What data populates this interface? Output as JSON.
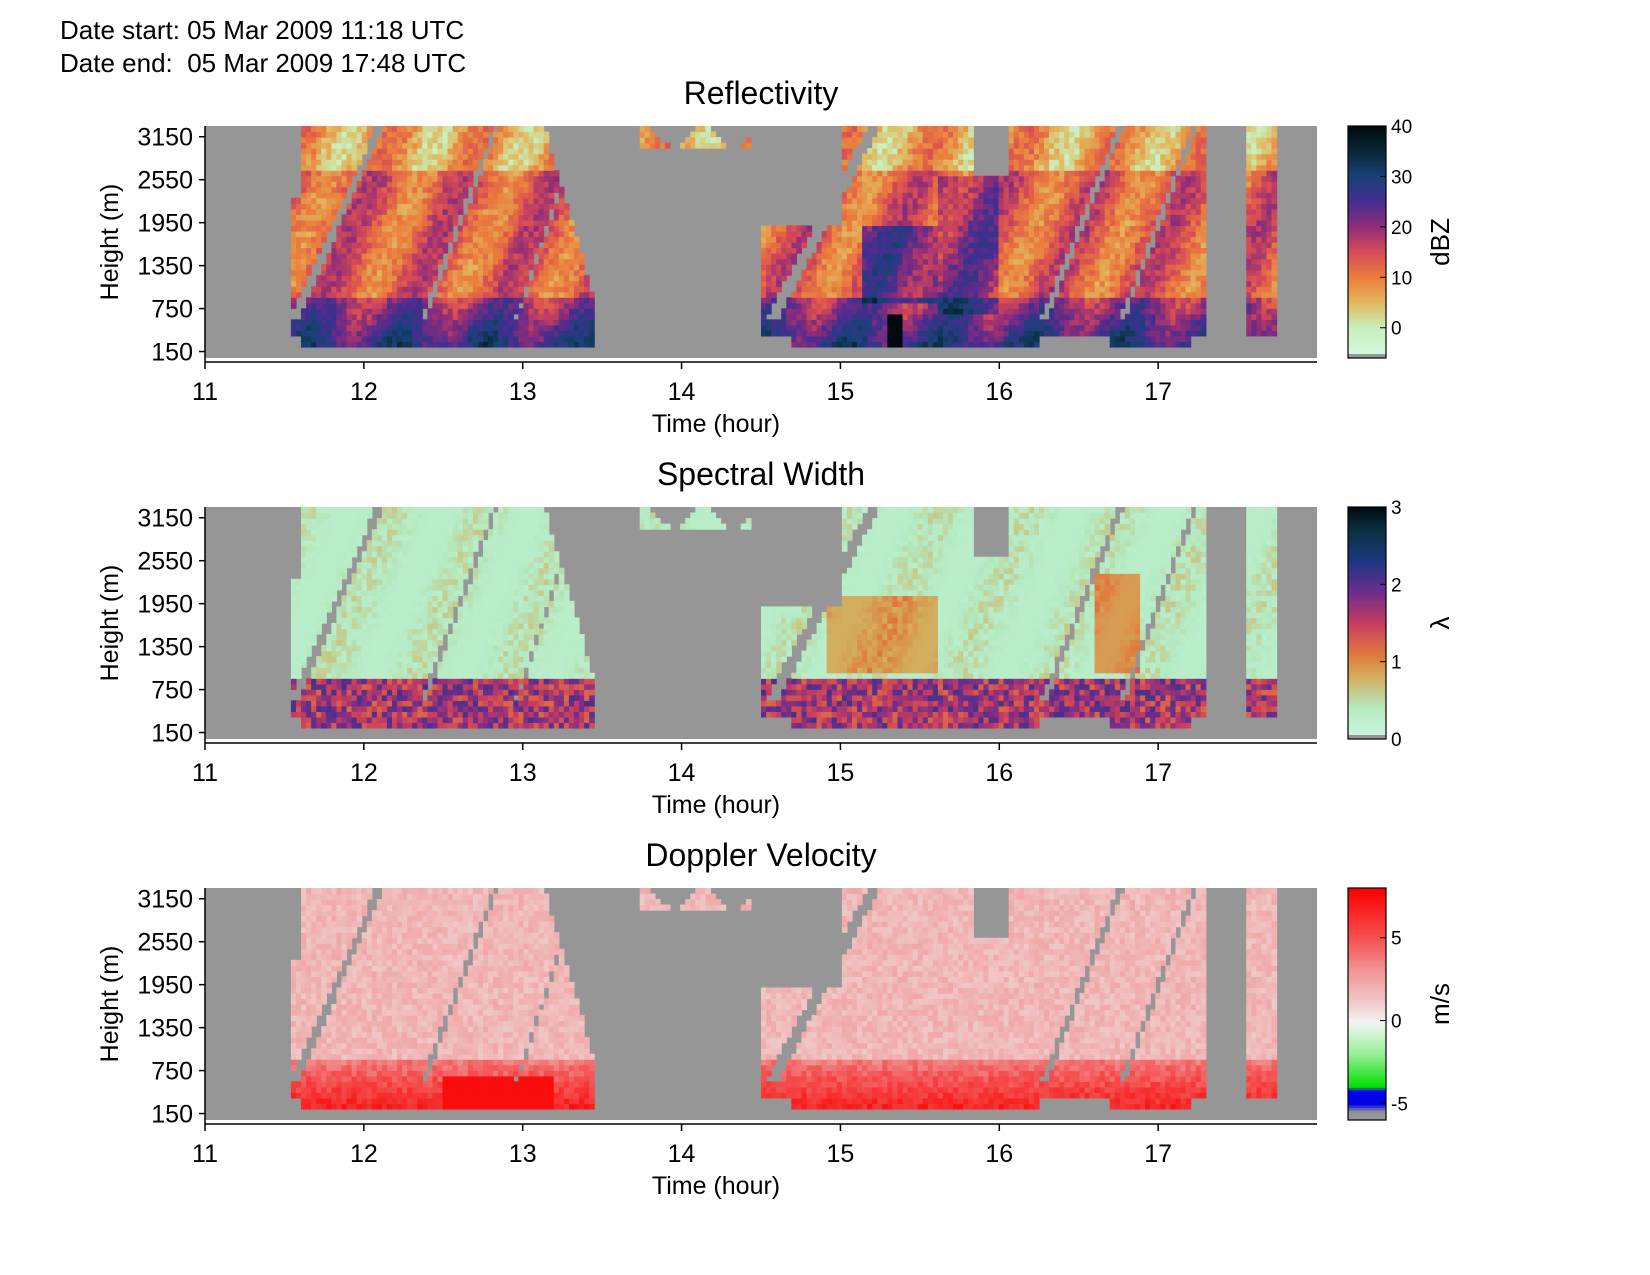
{
  "header": {
    "date_start": "Date start: 05 Mar 2009 11:18 UTC",
    "date_end": "Date end:  05 Mar 2009 17:48 UTC"
  },
  "chart_data": [
    {
      "type": "heatmap",
      "title": "Reflectivity",
      "xlabel": "Time (hour)",
      "ylabel": "Height (m)",
      "xlim": [
        11,
        18
      ],
      "xticks": [
        "11",
        "12",
        "13",
        "14",
        "15",
        "16",
        "17"
      ],
      "ylim": [
        60,
        3300
      ],
      "yticks": [
        "150",
        "750",
        "1350",
        "1950",
        "2550",
        "3150"
      ],
      "colorbar": {
        "label": "dBZ",
        "range": [
          -6,
          40
        ],
        "ticks": [
          "0",
          "10",
          "20",
          "30",
          "40"
        ],
        "colormap": "reflectivity"
      },
      "missing_color": "#969696",
      "echo_periods_hours": [
        [
          11.55,
          13.45
        ],
        [
          13.75,
          14.45
        ],
        [
          14.5,
          17.3
        ],
        [
          17.55,
          17.75
        ]
      ],
      "strongest_echo_near_surface_hours": [
        15.2,
        15.4
      ],
      "strongest_value_dBZ": 40
    },
    {
      "type": "heatmap",
      "title": "Spectral Width",
      "xlabel": "Time (hour)",
      "ylabel": "Height (m)",
      "xlim": [
        11,
        18
      ],
      "xticks": [
        "11",
        "12",
        "13",
        "14",
        "15",
        "16",
        "17"
      ],
      "ylim": [
        60,
        3300
      ],
      "yticks": [
        "150",
        "750",
        "1350",
        "1950",
        "2550",
        "3150"
      ],
      "colorbar": {
        "label": "λ",
        "range": [
          0,
          3
        ],
        "ticks": [
          "0",
          "1",
          "2",
          "3"
        ],
        "colormap": "spectral-width"
      },
      "missing_color": "#969696",
      "typical_value_aloft": 0.3,
      "typical_value_near_surface": 1.5
    },
    {
      "type": "heatmap",
      "title": "Doppler Velocity",
      "xlabel": "Time (hour)",
      "ylabel": "Height (m)",
      "xlim": [
        11,
        18
      ],
      "xticks": [
        "11",
        "12",
        "13",
        "14",
        "15",
        "16",
        "17"
      ],
      "ylim": [
        60,
        3300
      ],
      "yticks": [
        "150",
        "750",
        "1350",
        "1950",
        "2550",
        "3150"
      ],
      "colorbar": {
        "label": "m/s",
        "range": [
          -6,
          8
        ],
        "ticks": [
          "-5",
          "0",
          "5"
        ],
        "colormap": "velocity"
      },
      "missing_color": "#969696",
      "typical_value_aloft": 1.5,
      "typical_value_near_surface": 7
    }
  ]
}
